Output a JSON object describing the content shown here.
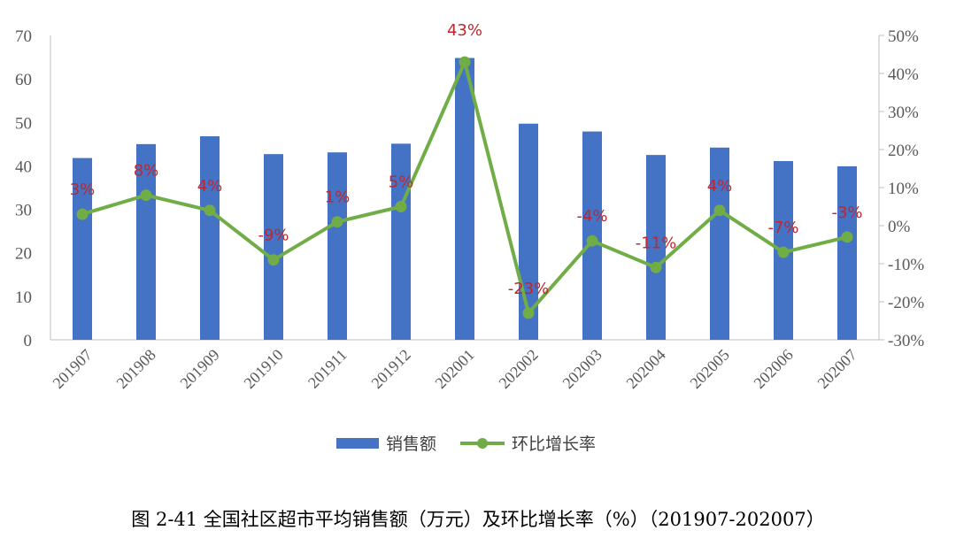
{
  "chart_data": {
    "type": "bar",
    "categories": [
      "201907",
      "201908",
      "201909",
      "201910",
      "201911",
      "201912",
      "202001",
      "202002",
      "202003",
      "202004",
      "202005",
      "202006",
      "202007"
    ],
    "series": [
      {
        "name": "销售额",
        "type": "bar",
        "axis": "left",
        "color": "#4472c4",
        "values": [
          41.8,
          45.0,
          46.8,
          42.7,
          43.1,
          45.1,
          64.8,
          49.7,
          47.9,
          42.5,
          44.2,
          41.1,
          39.9
        ]
      },
      {
        "name": "环比增长率",
        "type": "line",
        "axis": "right",
        "color": "#70ad47",
        "values": [
          3,
          8,
          4,
          -9,
          1,
          5,
          43,
          -23,
          -4,
          -11,
          4,
          -7,
          -3
        ],
        "labels": [
          "3%",
          "8%",
          "4%",
          "-9%",
          "1%",
          "5%",
          "43%",
          "-23%",
          "-4%",
          "-11%",
          "4%",
          "-7%",
          "-3%"
        ]
      }
    ],
    "y_left": {
      "ylim": [
        0,
        70
      ],
      "ticks": [
        0,
        10,
        20,
        30,
        40,
        50,
        60,
        70
      ],
      "tick_labels": [
        "0",
        "10",
        "20",
        "30",
        "40",
        "50",
        "60",
        "70"
      ]
    },
    "y_right": {
      "ylim": [
        -30,
        50
      ],
      "ticks": [
        -30,
        -20,
        -10,
        0,
        10,
        20,
        30,
        40,
        50
      ],
      "tick_labels": [
        "-30%",
        "-20%",
        "-10%",
        "0%",
        "10%",
        "20%",
        "30%",
        "40%",
        "50%"
      ]
    },
    "grid": false,
    "legend": "bottom",
    "caption": "图 2-41 全国社区超市平均销售额（万元）及环比增长率（%）（201907-202007）"
  }
}
